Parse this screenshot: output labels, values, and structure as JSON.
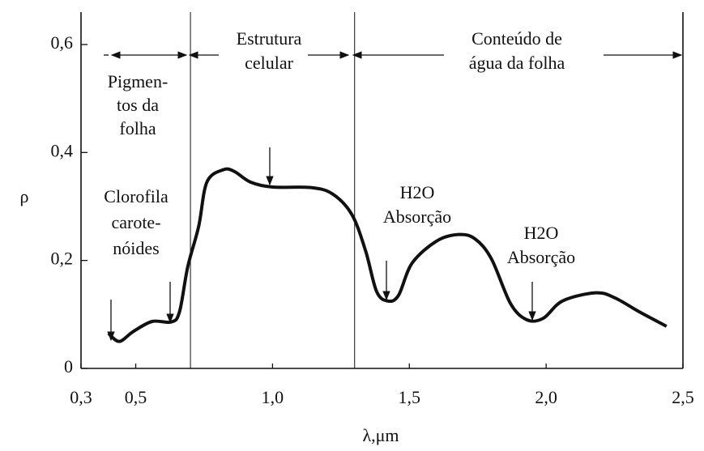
{
  "chart_data": {
    "type": "line",
    "xlabel": "λ,μm",
    "ylabel": "ρ",
    "x": [
      0.4,
      0.44,
      0.49,
      0.56,
      0.63,
      0.66,
      0.69,
      0.73,
      0.76,
      0.82,
      0.86,
      0.92,
      1.0,
      1.14,
      1.22,
      1.29,
      1.34,
      1.38,
      1.42,
      1.46,
      1.51,
      1.6,
      1.68,
      1.74,
      1.8,
      1.87,
      1.93,
      1.99,
      2.06,
      2.18,
      2.25,
      2.34,
      2.44
    ],
    "series": [
      {
        "color": "#111111",
        "values": [
          0.065,
          0.05,
          0.068,
          0.087,
          0.086,
          0.105,
          0.188,
          0.263,
          0.345,
          0.368,
          0.365,
          0.345,
          0.336,
          0.335,
          0.323,
          0.285,
          0.218,
          0.143,
          0.125,
          0.135,
          0.195,
          0.236,
          0.248,
          0.24,
          0.203,
          0.12,
          0.09,
          0.093,
          0.125,
          0.14,
          0.131,
          0.105,
          0.078
        ]
      }
    ],
    "xlim": [
      0.3,
      2.5
    ],
    "ylim": [
      0,
      0.6
    ],
    "xticks": [
      {
        "value": 0.3,
        "label": "0,3"
      },
      {
        "value": 0.5,
        "label": "0,5"
      },
      {
        "value": 1.0,
        "label": "1,0"
      },
      {
        "value": 1.5,
        "label": "1,5"
      },
      {
        "value": 2.0,
        "label": "2,0"
      },
      {
        "value": 2.5,
        "label": "2,5"
      }
    ],
    "yticks": [
      0,
      {
        "value": 0.2,
        "label": "0,2"
      },
      {
        "value": 0.4,
        "label": "0,4"
      },
      {
        "value": 0.6,
        "label": "0,6"
      }
    ],
    "annotations": [
      {
        "lines": [
          "Pigmen-",
          "tos da",
          "folha"
        ]
      },
      {
        "lines": [
          "Estrutura",
          "celular"
        ]
      },
      {
        "lines": [
          "Conteúdo de",
          "água da folha"
        ]
      },
      {
        "lines": [
          "Clorofila",
          "carote-",
          "nóides"
        ]
      },
      {
        "lines": [
          "H2O",
          "Absorção"
        ]
      },
      {
        "lines": [
          "H2O",
          "Absorção"
        ]
      }
    ]
  }
}
